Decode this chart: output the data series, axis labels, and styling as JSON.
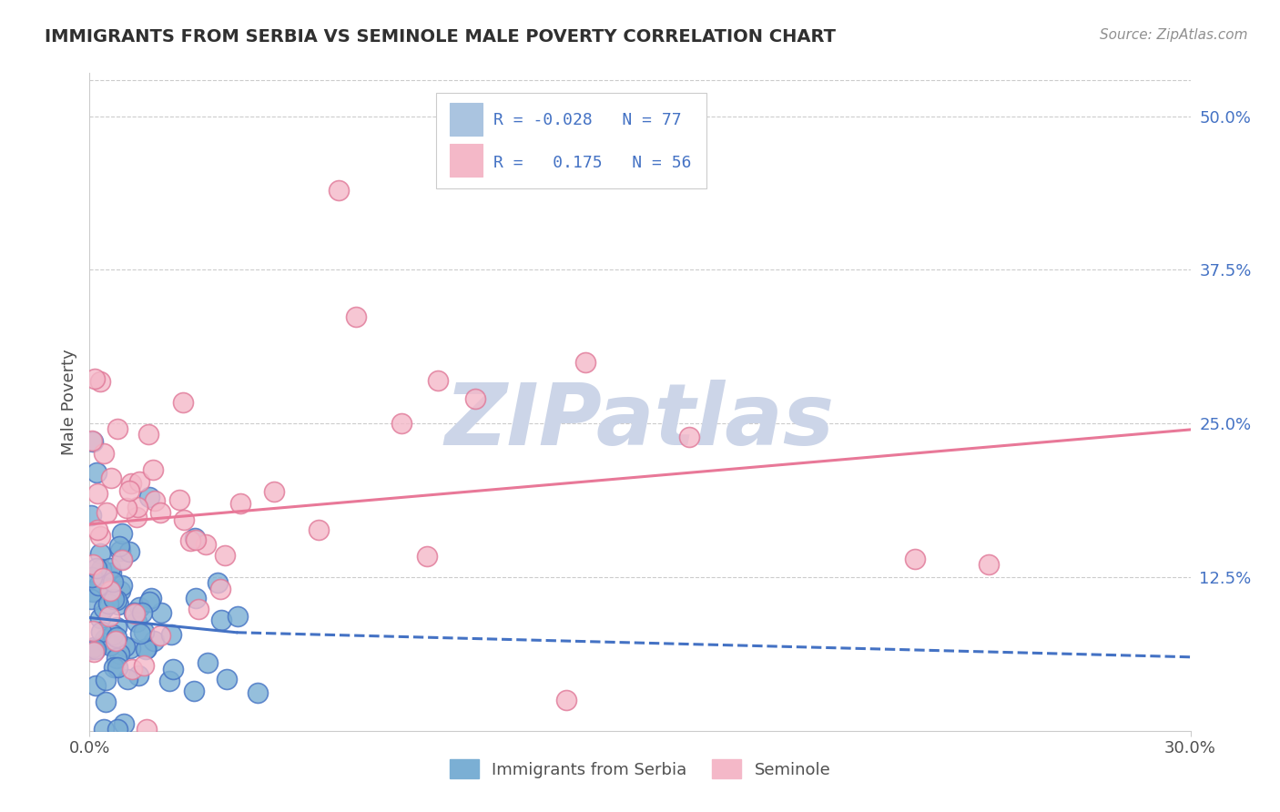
{
  "title": "IMMIGRANTS FROM SERBIA VS SEMINOLE MALE POVERTY CORRELATION CHART",
  "source": "Source: ZipAtlas.com",
  "ylabel": "Male Poverty",
  "right_ytick_labels": [
    "50.0%",
    "37.5%",
    "25.0%",
    "12.5%"
  ],
  "right_ytick_values": [
    0.5,
    0.375,
    0.25,
    0.125
  ],
  "legend_series": [
    {
      "label": "Immigrants from Serbia",
      "color": "#aac4e0",
      "R": -0.028,
      "N": 77
    },
    {
      "label": "Seminole",
      "color": "#f4b8c8",
      "R": 0.175,
      "N": 56
    }
  ],
  "blue_line_solid": {
    "x": [
      0.0,
      0.04
    ],
    "y": [
      0.092,
      0.08
    ]
  },
  "blue_line_dashed": {
    "x": [
      0.04,
      0.3
    ],
    "y": [
      0.08,
      0.06
    ]
  },
  "pink_line": {
    "x": [
      0.0,
      0.3
    ],
    "y": [
      0.168,
      0.245
    ]
  },
  "xlim": [
    0.0,
    0.3
  ],
  "ylim": [
    0.0,
    0.535
  ],
  "background_color": "#ffffff",
  "grid_color": "#cccccc",
  "title_color": "#303030",
  "source_color": "#909090",
  "watermark": "ZIPatlas",
  "watermark_color": "#ccd5e8",
  "scatter_blue_fill": "#7bafd4",
  "scatter_blue_edge": "#4472c4",
  "scatter_pink_fill": "#f4b8c8",
  "scatter_pink_edge": "#e07898",
  "trend_blue_color": "#4472c4",
  "trend_pink_color": "#e87898"
}
